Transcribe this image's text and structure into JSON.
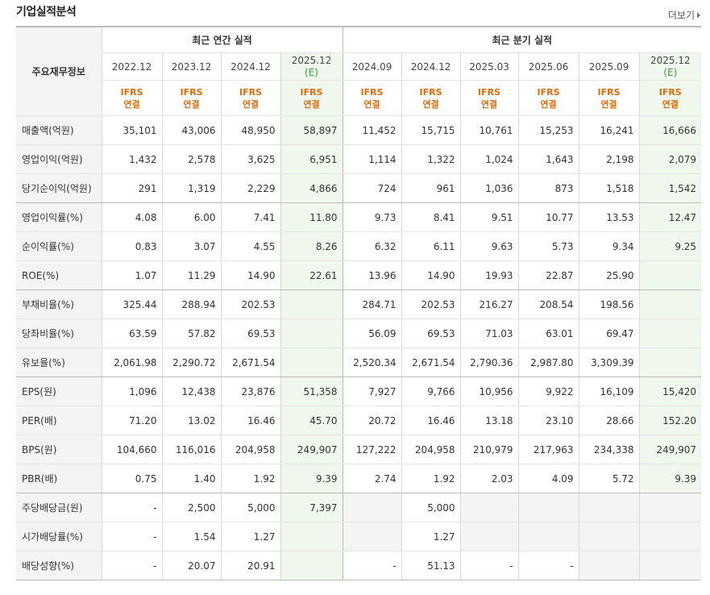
{
  "header": {
    "title": "기업실적분석",
    "more_label": "더보기"
  },
  "table": {
    "corner_label": "주요재무정보",
    "annual_label": "최근 연간 실적",
    "quarter_label": "최근 분기 실적",
    "periods": [
      "2022.12",
      "2023.12",
      "2024.12",
      "2025.12",
      "2024.09",
      "2024.12",
      "2025.03",
      "2025.06",
      "2025.09",
      "2025.12"
    ],
    "estimate_flags": [
      false,
      false,
      false,
      true,
      false,
      false,
      false,
      false,
      false,
      true
    ],
    "estimate_label": "(E)",
    "ifrs_line1": "IFRS",
    "ifrs_line2": "연결",
    "rows": [
      {
        "label": "매출액(억원)",
        "values": [
          "35,101",
          "43,006",
          "48,950",
          "58,897",
          "11,452",
          "15,715",
          "10,761",
          "15,253",
          "16,241",
          "16,666"
        ]
      },
      {
        "label": "영업이익(억원)",
        "values": [
          "1,432",
          "2,578",
          "3,625",
          "6,951",
          "1,114",
          "1,322",
          "1,024",
          "1,643",
          "2,198",
          "2,079"
        ]
      },
      {
        "label": "당기순이익(억원)",
        "values": [
          "291",
          "1,319",
          "2,229",
          "4,866",
          "724",
          "961",
          "1,036",
          "873",
          "1,518",
          "1,542"
        ]
      },
      {
        "label": "영업이익률(%)",
        "values": [
          "4.08",
          "6.00",
          "7.41",
          "11.80",
          "9.73",
          "8.41",
          "9.51",
          "10.77",
          "13.53",
          "12.47"
        ]
      },
      {
        "label": "순이익률(%)",
        "values": [
          "0.83",
          "3.07",
          "4.55",
          "8.26",
          "6.32",
          "6.11",
          "9.63",
          "5.73",
          "9.34",
          "9.25"
        ]
      },
      {
        "label": "ROE(%)",
        "values": [
          "1.07",
          "11.29",
          "14.90",
          "22.61",
          "13.96",
          "14.90",
          "19.93",
          "22.87",
          "25.90",
          ""
        ]
      },
      {
        "label": "부채비율(%)",
        "values": [
          "325.44",
          "288.94",
          "202.53",
          "",
          "284.71",
          "202.53",
          "216.27",
          "208.54",
          "198.56",
          ""
        ]
      },
      {
        "label": "당좌비율(%)",
        "values": [
          "63.59",
          "57.82",
          "69.53",
          "",
          "56.09",
          "69.53",
          "71.03",
          "63.01",
          "69.47",
          ""
        ]
      },
      {
        "label": "유보율(%)",
        "values": [
          "2,061.98",
          "2,290.72",
          "2,671.54",
          "",
          "2,520.34",
          "2,671.54",
          "2,790.36",
          "2,987.80",
          "3,309.39",
          ""
        ]
      },
      {
        "label": "EPS(원)",
        "values": [
          "1,096",
          "12,438",
          "23,876",
          "51,358",
          "7,927",
          "9,766",
          "10,956",
          "9,922",
          "16,109",
          "15,420"
        ]
      },
      {
        "label": "PER(배)",
        "values": [
          "71.20",
          "13.02",
          "16.46",
          "45.70",
          "20.72",
          "16.46",
          "13.18",
          "23.10",
          "28.66",
          "152.20"
        ]
      },
      {
        "label": "BPS(원)",
        "values": [
          "104,660",
          "116,016",
          "204,958",
          "249,907",
          "127,222",
          "204,958",
          "210,979",
          "217,963",
          "234,338",
          "249,907"
        ]
      },
      {
        "label": "PBR(배)",
        "values": [
          "0.75",
          "1.40",
          "1.92",
          "9.39",
          "2.74",
          "1.92",
          "2.03",
          "4.09",
          "5.72",
          "9.39"
        ]
      },
      {
        "label": "주당배당금(원)",
        "values": [
          "-",
          "2,500",
          "5,000",
          "7,397",
          "",
          "5,000",
          "",
          "",
          "",
          ""
        ],
        "gray": [
          false,
          false,
          false,
          false,
          true,
          false,
          true,
          true,
          true,
          true
        ]
      },
      {
        "label": "시가배당률(%)",
        "values": [
          "-",
          "1.54",
          "1.27",
          "",
          "",
          "1.27",
          "",
          "",
          "",
          ""
        ],
        "gray": [
          false,
          false,
          false,
          false,
          true,
          false,
          true,
          true,
          true,
          true
        ]
      },
      {
        "label": "배당성향(%)",
        "values": [
          "-",
          "20.07",
          "20.91",
          "",
          "-",
          "51.13",
          "-",
          "-",
          "",
          ""
        ],
        "gray": [
          false,
          false,
          false,
          false,
          false,
          false,
          false,
          false,
          true,
          true
        ]
      }
    ],
    "group_ends": [
      2,
      5,
      8,
      12,
      15
    ]
  }
}
